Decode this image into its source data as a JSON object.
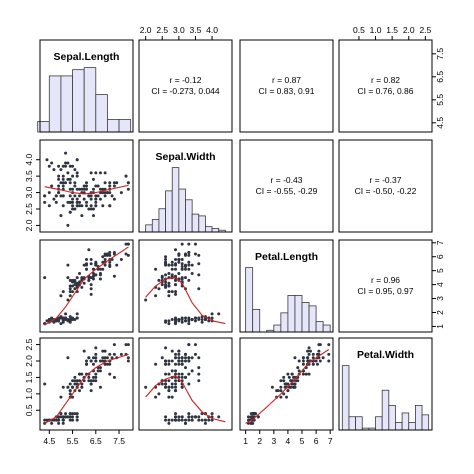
{
  "chart_data": {
    "type": "scatter",
    "variables": [
      "Sepal.Length",
      "Sepal.Width",
      "Petal.Length",
      "Petal.Width"
    ],
    "axis_ranges": {
      "Sepal.Length": [
        4.1,
        8.1
      ],
      "Sepal.Width": [
        1.8,
        4.6
      ],
      "Petal.Length": [
        0.6,
        7.2
      ],
      "Petal.Width": [
        -0.1,
        2.7
      ]
    },
    "axis_ticks": {
      "Sepal.Length": [
        "4.5",
        "5.5",
        "6.5",
        "7.5"
      ],
      "Sepal.Width": [
        "2.0",
        "2.5",
        "3.0",
        "3.5",
        "4.0"
      ],
      "Petal.Length": [
        "1",
        "2",
        "3",
        "4",
        "5",
        "6",
        "7"
      ],
      "Petal.Width": [
        "0.5",
        "1.0",
        "1.5",
        "2.0",
        "2.5"
      ]
    },
    "histograms": [
      {
        "variable": "Sepal.Length",
        "breaks": [
          4,
          4.5,
          5,
          5.5,
          6,
          6.5,
          7,
          7.5,
          8
        ],
        "counts": [
          5,
          27,
          27,
          30,
          31,
          18,
          6,
          6
        ]
      },
      {
        "variable": "Sepal.Width",
        "breaks": [
          2,
          2.2,
          2.4,
          2.6,
          2.8,
          3,
          3.2,
          3.4,
          3.6,
          3.8,
          4,
          4.2,
          4.4
        ],
        "counts": [
          4,
          7,
          13,
          23,
          36,
          24,
          18,
          10,
          9,
          3,
          2,
          1
        ]
      },
      {
        "variable": "Petal.Length",
        "breaks": [
          1,
          1.5,
          2,
          2.5,
          3,
          3.5,
          4,
          4.5,
          5,
          5.5,
          6,
          6.5,
          7
        ],
        "counts": [
          37,
          13,
          0,
          1,
          4,
          11,
          21,
          21,
          17,
          15,
          6,
          4
        ]
      },
      {
        "variable": "Petal.Width",
        "breaks": [
          0,
          0.2,
          0.4,
          0.6,
          0.8,
          1,
          1.2,
          1.4,
          1.6,
          1.8,
          2,
          2.2,
          2.4,
          2.6
        ],
        "counts": [
          34,
          7,
          7,
          1,
          1,
          7,
          21,
          13,
          4,
          9,
          4,
          13,
          8
        ]
      }
    ],
    "correlations": [
      {
        "vars": [
          "Sepal.Length",
          "Sepal.Width"
        ],
        "r": "r = -0.12",
        "ci": "CI = -0.273,  0.044"
      },
      {
        "vars": [
          "Sepal.Length",
          "Petal.Length"
        ],
        "r": "r = 0.87",
        "ci": "CI = 0.83, 0.91"
      },
      {
        "vars": [
          "Sepal.Length",
          "Petal.Width"
        ],
        "r": "r = 0.82",
        "ci": "CI = 0.76, 0.86"
      },
      {
        "vars": [
          "Sepal.Width",
          "Petal.Length"
        ],
        "r": "r = -0.43",
        "ci": "CI = -0.55, -0.29"
      },
      {
        "vars": [
          "Sepal.Width",
          "Petal.Width"
        ],
        "r": "r = -0.37",
        "ci": "CI = -0.50, -0.22"
      },
      {
        "vars": [
          "Petal.Length",
          "Petal.Width"
        ],
        "r": "r = 0.96",
        "ci": "CI = 0.95, 0.97"
      }
    ],
    "smooth_lines": [
      {
        "x_var": "Sepal.Length",
        "y_var": "Sepal.Width",
        "points": [
          [
            4.3,
            3.18
          ],
          [
            5.0,
            3.08
          ],
          [
            5.5,
            3.0
          ],
          [
            6.0,
            2.96
          ],
          [
            6.5,
            3.0
          ],
          [
            7.0,
            3.08
          ],
          [
            7.9,
            3.22
          ]
        ]
      },
      {
        "x_var": "Sepal.Length",
        "y_var": "Petal.Length",
        "points": [
          [
            4.3,
            1.1
          ],
          [
            4.8,
            1.6
          ],
          [
            5.2,
            2.4
          ],
          [
            5.6,
            3.4
          ],
          [
            6.0,
            4.4
          ],
          [
            6.5,
            5.1
          ],
          [
            7.0,
            5.7
          ],
          [
            7.9,
            6.7
          ]
        ]
      },
      {
        "x_var": "Sepal.Length",
        "y_var": "Petal.Width",
        "points": [
          [
            4.3,
            0.1
          ],
          [
            4.8,
            0.3
          ],
          [
            5.2,
            0.7
          ],
          [
            5.6,
            1.1
          ],
          [
            6.0,
            1.5
          ],
          [
            6.5,
            1.8
          ],
          [
            7.0,
            2.0
          ],
          [
            7.9,
            2.2
          ]
        ]
      },
      {
        "x_var": "Sepal.Width",
        "y_var": "Petal.Length",
        "points": [
          [
            2.0,
            3.1
          ],
          [
            2.3,
            3.9
          ],
          [
            2.6,
            4.4
          ],
          [
            2.9,
            4.5
          ],
          [
            3.1,
            4.1
          ],
          [
            3.4,
            2.7
          ],
          [
            3.7,
            1.8
          ],
          [
            4.0,
            1.4
          ],
          [
            4.4,
            1.2
          ]
        ]
      },
      {
        "x_var": "Sepal.Width",
        "y_var": "Petal.Width",
        "points": [
          [
            2.0,
            0.9
          ],
          [
            2.3,
            1.25
          ],
          [
            2.6,
            1.45
          ],
          [
            2.9,
            1.55
          ],
          [
            3.1,
            1.35
          ],
          [
            3.4,
            0.8
          ],
          [
            3.7,
            0.45
          ],
          [
            4.0,
            0.25
          ],
          [
            4.4,
            0.15
          ]
        ]
      },
      {
        "x_var": "Petal.Length",
        "y_var": "Petal.Width",
        "points": [
          [
            1.0,
            0.1
          ],
          [
            1.5,
            0.22
          ],
          [
            2.5,
            0.6
          ],
          [
            3.5,
            1.0
          ],
          [
            4.5,
            1.45
          ],
          [
            5.5,
            1.95
          ],
          [
            6.9,
            2.35
          ]
        ]
      }
    ]
  }
}
